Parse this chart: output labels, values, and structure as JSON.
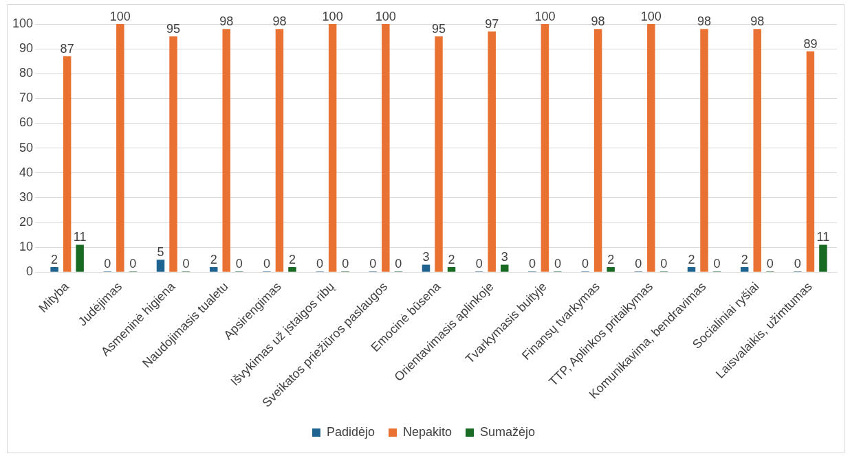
{
  "chart_data": {
    "type": "bar",
    "categories": [
      "Mityba",
      "Judėjimas",
      "Asmeninė higiena",
      "Naudojimasis tualetu",
      "Apsirengimas",
      "Išvykimas už įstaigos ribų",
      "Sveikatos priežiūros paslaugos",
      "Emocinė būsena",
      "Orientavimasis aplinkoje",
      "Tvarkymasis buityje",
      "Finansų tvarkymas",
      "TTP, Aplinkos pritaikymas",
      "Komunikavima, bendravimas",
      "Socialiniai ryšiai",
      "Laisvalaikis, užimtumas"
    ],
    "series": [
      {
        "name": "Padidėjo",
        "color": "#1f6391",
        "values": [
          2,
          0,
          5,
          2,
          0,
          0,
          0,
          3,
          0,
          0,
          0,
          0,
          2,
          2,
          0
        ]
      },
      {
        "name": "Nepakito",
        "color": "#e97132",
        "values": [
          87,
          100,
          95,
          98,
          98,
          100,
          100,
          95,
          97,
          100,
          98,
          100,
          98,
          98,
          89
        ]
      },
      {
        "name": "Sumažėjo",
        "color": "#196b24",
        "values": [
          11,
          0,
          0,
          0,
          2,
          0,
          0,
          2,
          3,
          0,
          2,
          0,
          0,
          0,
          11
        ]
      }
    ],
    "ylim": [
      0,
      100
    ],
    "yticks": [
      0,
      10,
      20,
      30,
      40,
      50,
      60,
      70,
      80,
      90,
      100
    ],
    "grid": "y",
    "legend": "bottom",
    "data_labels": true
  }
}
